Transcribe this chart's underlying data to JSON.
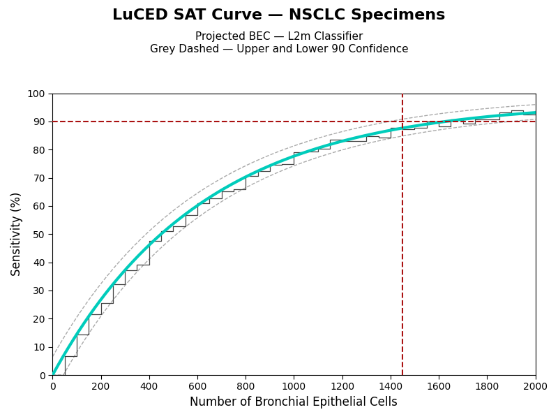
{
  "title": "LuCED SAT Curve — NSCLC Specimens",
  "subtitle1": "Projected BEC — L2m Classifier",
  "subtitle2": "Grey Dashed — Upper and Lower 90 Confidence",
  "xlabel": "Number of Bronchial Epithelial Cells",
  "ylabel": "Sensitivity (%)",
  "xlim": [
    0,
    2000
  ],
  "ylim": [
    0,
    100
  ],
  "xticks": [
    0,
    200,
    400,
    600,
    800,
    1000,
    1200,
    1400,
    1600,
    1800,
    2000
  ],
  "yticks": [
    0,
    10,
    20,
    30,
    40,
    50,
    60,
    70,
    80,
    90,
    100
  ],
  "hline_y": 90,
  "vline_x": 1450,
  "hline_color": "#aa1111",
  "vline_color": "#aa1111",
  "sat_color": "#00ccbb",
  "sat_linewidth": 3.0,
  "ci_color": "#aaaaaa",
  "ci_linestyle": "--",
  "empirical_color": "#444444",
  "empirical_linewidth": 0.9,
  "bg_color": "#ffffff",
  "plot_bg_color": "#ffffff",
  "title_fontsize": 16,
  "subtitle_fontsize": 11,
  "axis_label_fontsize": 12,
  "tick_fontsize": 10
}
